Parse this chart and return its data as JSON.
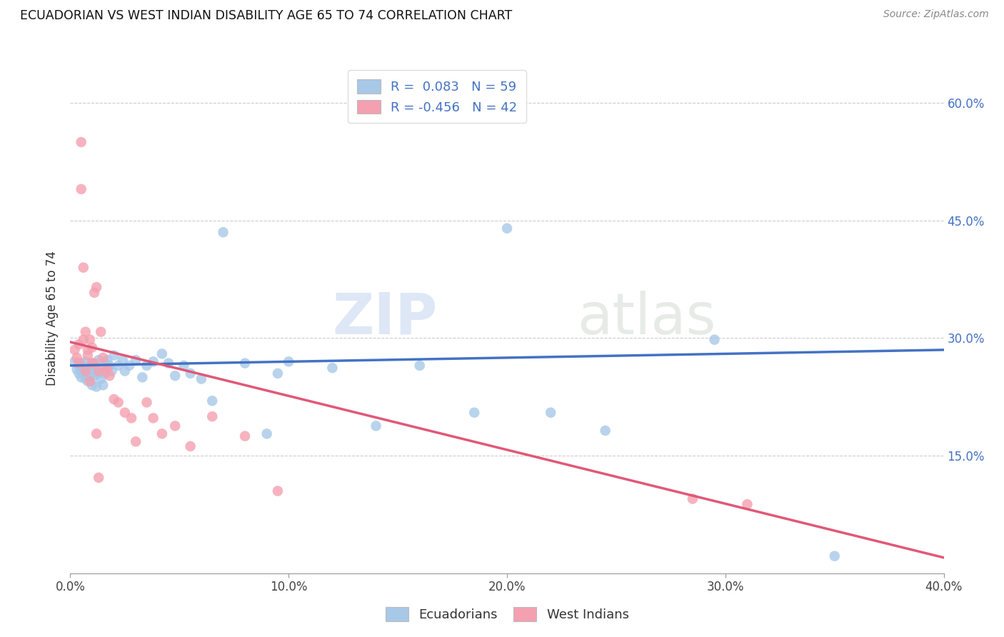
{
  "title": "ECUADORIAN VS WEST INDIAN DISABILITY AGE 65 TO 74 CORRELATION CHART",
  "source": "Source: ZipAtlas.com",
  "ylabel": "Disability Age 65 to 74",
  "xlim": [
    0.0,
    0.4
  ],
  "ylim": [
    0.0,
    0.65
  ],
  "xticks": [
    0.0,
    0.1,
    0.2,
    0.3,
    0.4
  ],
  "yticks": [
    0.0,
    0.15,
    0.3,
    0.45,
    0.6
  ],
  "ytick_labels_left": [
    "",
    "",
    "",
    "",
    ""
  ],
  "xtick_labels": [
    "0.0%",
    "10.0%",
    "20.0%",
    "30.0%",
    "40.0%"
  ],
  "right_ytick_labels": [
    "",
    "15.0%",
    "30.0%",
    "45.0%",
    "60.0%"
  ],
  "ecuadorian_color": "#a8c8e8",
  "west_indian_color": "#f4a0b0",
  "ecuadorian_line_color": "#4472c4",
  "west_indian_line_color": "#e05878",
  "R_ecuadorian": 0.083,
  "N_ecuadorian": 59,
  "R_west_indian": -0.456,
  "N_west_indian": 42,
  "background_color": "#ffffff",
  "watermark_zip": "ZIP",
  "watermark_atlas": "atlas",
  "eq_line_x": [
    0.0,
    0.4
  ],
  "eq_line_y": [
    0.265,
    0.285
  ],
  "wi_line_x": [
    0.0,
    0.4
  ],
  "wi_line_y": [
    0.295,
    0.02
  ],
  "ecuadorian_x": [
    0.002,
    0.003,
    0.004,
    0.004,
    0.005,
    0.005,
    0.006,
    0.006,
    0.007,
    0.007,
    0.008,
    0.008,
    0.009,
    0.009,
    0.01,
    0.01,
    0.011,
    0.011,
    0.012,
    0.012,
    0.013,
    0.013,
    0.014,
    0.015,
    0.016,
    0.016,
    0.017,
    0.018,
    0.019,
    0.02,
    0.022,
    0.024,
    0.025,
    0.027,
    0.03,
    0.033,
    0.035,
    0.038,
    0.042,
    0.045,
    0.048,
    0.052,
    0.055,
    0.06,
    0.065,
    0.07,
    0.08,
    0.09,
    0.095,
    0.1,
    0.12,
    0.14,
    0.16,
    0.185,
    0.2,
    0.22,
    0.245,
    0.295,
    0.35
  ],
  "ecuadorian_y": [
    0.27,
    0.26,
    0.265,
    0.255,
    0.268,
    0.25,
    0.262,
    0.255,
    0.27,
    0.248,
    0.258,
    0.245,
    0.262,
    0.25,
    0.268,
    0.24,
    0.258,
    0.252,
    0.262,
    0.238,
    0.272,
    0.255,
    0.248,
    0.24,
    0.255,
    0.268,
    0.272,
    0.265,
    0.258,
    0.278,
    0.265,
    0.272,
    0.258,
    0.265,
    0.272,
    0.25,
    0.265,
    0.27,
    0.28,
    0.268,
    0.252,
    0.265,
    0.255,
    0.248,
    0.22,
    0.435,
    0.268,
    0.178,
    0.255,
    0.27,
    0.262,
    0.188,
    0.265,
    0.205,
    0.44,
    0.205,
    0.182,
    0.298,
    0.022
  ],
  "west_indian_x": [
    0.002,
    0.003,
    0.004,
    0.004,
    0.005,
    0.005,
    0.006,
    0.006,
    0.007,
    0.007,
    0.008,
    0.008,
    0.009,
    0.009,
    0.01,
    0.01,
    0.011,
    0.011,
    0.012,
    0.012,
    0.013,
    0.013,
    0.014,
    0.015,
    0.016,
    0.017,
    0.018,
    0.02,
    0.022,
    0.025,
    0.028,
    0.03,
    0.035,
    0.038,
    0.042,
    0.048,
    0.055,
    0.065,
    0.08,
    0.095,
    0.285,
    0.31
  ],
  "west_indian_y": [
    0.285,
    0.275,
    0.292,
    0.268,
    0.55,
    0.49,
    0.39,
    0.298,
    0.258,
    0.308,
    0.278,
    0.285,
    0.298,
    0.245,
    0.288,
    0.268,
    0.268,
    0.358,
    0.365,
    0.178,
    0.122,
    0.258,
    0.308,
    0.275,
    0.258,
    0.262,
    0.252,
    0.222,
    0.218,
    0.205,
    0.198,
    0.168,
    0.218,
    0.198,
    0.178,
    0.188,
    0.162,
    0.2,
    0.175,
    0.105,
    0.095,
    0.088
  ]
}
